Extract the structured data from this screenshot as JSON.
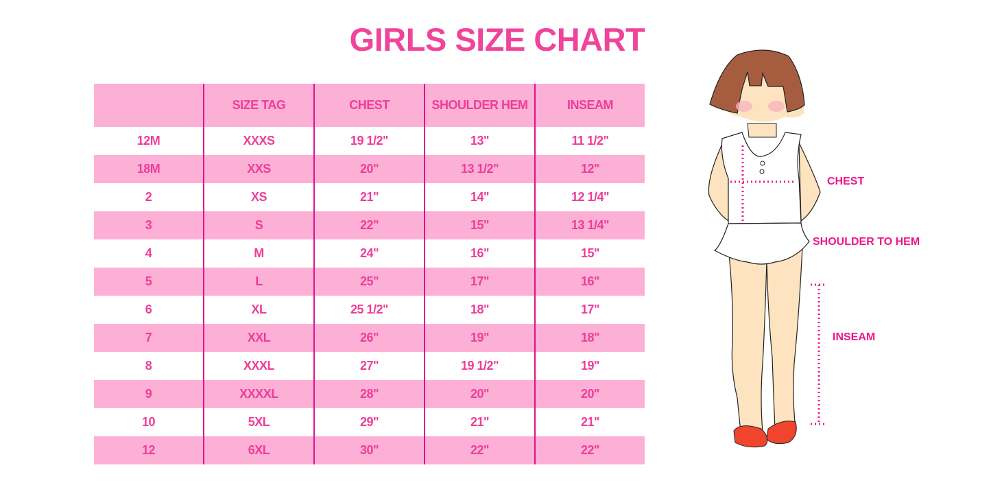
{
  "title": "GIRLS SIZE CHART",
  "table": {
    "headers": [
      "",
      "SIZE TAG",
      "CHEST",
      "SHOULDER HEM",
      "INSEAM"
    ],
    "rows": [
      [
        "12M",
        "XXXS",
        "19 1/2\"",
        "13\"",
        "11 1/2\""
      ],
      [
        "18M",
        "XXS",
        "20\"",
        "13 1/2\"",
        "12\""
      ],
      [
        "2",
        "XS",
        "21\"",
        "14\"",
        "12 1/4\""
      ],
      [
        "3",
        "S",
        "22\"",
        "15\"",
        "13 1/4\""
      ],
      [
        "4",
        "M",
        "24\"",
        "16\"",
        "15\""
      ],
      [
        "5",
        "L",
        "25\"",
        "17\"",
        "16\""
      ],
      [
        "6",
        "XL",
        "25 1/2\"",
        "18\"",
        "17\""
      ],
      [
        "7",
        "XXL",
        "26\"",
        "19\"",
        "18\""
      ],
      [
        "8",
        "XXXL",
        "27\"",
        "19 1/2\"",
        "19\""
      ],
      [
        "9",
        "XXXXL",
        "28\"",
        "20\"",
        "20\""
      ],
      [
        "10",
        "5XL",
        "29\"",
        "21\"",
        "21\""
      ],
      [
        "12",
        "6XL",
        "30\"",
        "22\"",
        "22\""
      ]
    ]
  },
  "figure": {
    "labels": {
      "chest": "CHEST",
      "shoulder_to_hem": "SHOULDER TO HEM",
      "inseam": "INSEAM"
    }
  },
  "colors": {
    "accent": "#ee3d98",
    "row_pink": "#fdb0d6",
    "divider": "#e0128c",
    "measure": "#ef1589"
  }
}
